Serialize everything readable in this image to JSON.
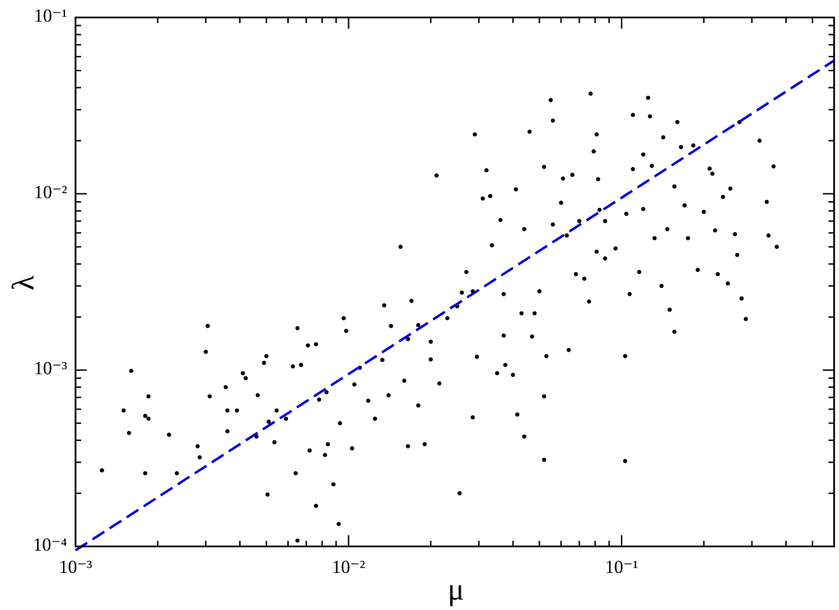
{
  "chart_data": {
    "type": "scatter",
    "x_label": "μ",
    "y_label": "λ",
    "xscale": "log",
    "yscale": "log",
    "xlim": [
      0.001,
      0.6
    ],
    "ylim": [
      0.0001,
      0.1
    ],
    "xticks": [
      {
        "value": 0.001,
        "label": "10⁻³"
      },
      {
        "value": 0.01,
        "label": "10⁻²"
      },
      {
        "value": 0.1,
        "label": "10⁻¹"
      }
    ],
    "yticks": [
      {
        "value": 0.0001,
        "label": "10⁻⁴"
      },
      {
        "value": 0.001,
        "label": "10⁻³"
      },
      {
        "value": 0.01,
        "label": "10⁻²"
      },
      {
        "value": 0.1,
        "label": "10⁻¹"
      }
    ],
    "xminorticks": [
      0.002,
      0.003,
      0.004,
      0.005,
      0.006,
      0.007,
      0.008,
      0.009,
      0.02,
      0.03,
      0.04,
      0.05,
      0.06,
      0.07,
      0.08,
      0.09,
      0.2,
      0.3,
      0.4,
      0.5
    ],
    "yminorticks": [
      0.0002,
      0.0003,
      0.0004,
      0.0005,
      0.0006,
      0.0007,
      0.0008,
      0.0009,
      0.002,
      0.003,
      0.004,
      0.005,
      0.006,
      0.007,
      0.008,
      0.009,
      0.02,
      0.03,
      0.04,
      0.05,
      0.06,
      0.07,
      0.08,
      0.09
    ],
    "series": [
      {
        "color": "#000000",
        "marker": "dot",
        "x": [
          0.00125,
          0.0015,
          0.0016,
          0.00157,
          0.0018,
          0.00185,
          0.00185,
          0.0018,
          0.0022,
          0.00235,
          0.0028,
          0.00285,
          0.003,
          0.00305,
          0.0031,
          0.00355,
          0.0036,
          0.0036,
          0.0039,
          0.0041,
          0.0042,
          0.0046,
          0.00465,
          0.0049,
          0.005,
          0.00505,
          0.0051,
          0.00545,
          0.00535,
          0.0059,
          0.00625,
          0.0065,
          0.0064,
          0.0065,
          0.0067,
          0.0071,
          0.0072,
          0.0076,
          0.0076,
          0.0078,
          0.0083,
          0.0084,
          0.0082,
          0.0088,
          0.0093,
          0.0092,
          0.0096,
          0.0098,
          0.0103,
          0.0105,
          0.011,
          0.0118,
          0.0125,
          0.0133,
          0.0135,
          0.014,
          0.0143,
          0.0155,
          0.016,
          0.0165,
          0.0165,
          0.017,
          0.018,
          0.018,
          0.019,
          0.02,
          0.02,
          0.021,
          0.0215,
          0.023,
          0.025,
          0.0255,
          0.026,
          0.027,
          0.0285,
          0.029,
          0.0295,
          0.0285,
          0.031,
          0.032,
          0.0335,
          0.033,
          0.035,
          0.037,
          0.036,
          0.037,
          0.0375,
          0.04,
          0.041,
          0.0415,
          0.043,
          0.044,
          0.044,
          0.046,
          0.047,
          0.048,
          0.05,
          0.052,
          0.052,
          0.052,
          0.053,
          0.055,
          0.056,
          0.056,
          0.06,
          0.061,
          0.063,
          0.064,
          0.066,
          0.068,
          0.07,
          0.073,
          0.076,
          0.077,
          0.079,
          0.081,
          0.082,
          0.083,
          0.081,
          0.087,
          0.087,
          0.095,
          0.103,
          0.103,
          0.104,
          0.107,
          0.11,
          0.11,
          0.116,
          0.12,
          0.12,
          0.125,
          0.127,
          0.129,
          0.132,
          0.14,
          0.142,
          0.147,
          0.15,
          0.156,
          0.156,
          0.16,
          0.165,
          0.17,
          0.175,
          0.183,
          0.19,
          0.2,
          0.21,
          0.215,
          0.22,
          0.225,
          0.235,
          0.245,
          0.25,
          0.26,
          0.265,
          0.27,
          0.275,
          0.285,
          0.32,
          0.34,
          0.345,
          0.36,
          0.37
        ],
        "values": [
          0.00027,
          0.00059,
          0.00099,
          0.00044,
          0.00055,
          0.00071,
          0.00053,
          0.00026,
          0.00043,
          0.00026,
          0.00037,
          0.00032,
          0.00127,
          0.00178,
          0.00071,
          0.0008,
          0.00059,
          0.00045,
          0.00059,
          0.00096,
          0.0009,
          0.00042,
          0.00072,
          0.0011,
          0.0012,
          0.000197,
          0.00051,
          0.00059,
          0.00039,
          0.00053,
          0.00105,
          0.00173,
          0.00026,
          0.000108,
          0.00107,
          0.00138,
          0.00035,
          0.0014,
          0.00017,
          0.00068,
          0.00075,
          0.00038,
          0.00033,
          0.000225,
          0.0005,
          0.000134,
          0.00197,
          0.00167,
          0.00036,
          0.00083,
          0.00103,
          0.00067,
          0.00053,
          0.00114,
          0.00233,
          0.00072,
          0.00178,
          0.005,
          0.00087,
          0.00037,
          0.0015,
          0.00247,
          0.0018,
          0.00063,
          0.00038,
          0.00145,
          0.00115,
          0.0127,
          0.00084,
          0.00197,
          0.0023,
          0.0002,
          0.00275,
          0.0036,
          0.0028,
          0.0217,
          0.00119,
          0.00054,
          0.0094,
          0.0136,
          0.0051,
          0.0097,
          0.00096,
          0.0027,
          0.0071,
          0.00157,
          0.00107,
          0.00094,
          0.0106,
          0.00056,
          0.0021,
          0.0063,
          0.00042,
          0.0225,
          0.00155,
          0.0021,
          0.0028,
          0.0142,
          0.00071,
          0.00031,
          0.0012,
          0.034,
          0.026,
          0.0067,
          0.0089,
          0.0122,
          0.0058,
          0.0013,
          0.0128,
          0.0035,
          0.007,
          0.0033,
          0.00245,
          0.037,
          0.0174,
          0.0217,
          0.0121,
          0.0081,
          0.0047,
          0.007,
          0.0043,
          0.0049,
          0.0012,
          0.000305,
          0.0077,
          0.0027,
          0.028,
          0.0138,
          0.0036,
          0.0167,
          0.0082,
          0.035,
          0.0275,
          0.0144,
          0.0056,
          0.003,
          0.0209,
          0.0063,
          0.0022,
          0.011,
          0.00165,
          0.0255,
          0.0184,
          0.0086,
          0.0056,
          0.0188,
          0.0037,
          0.0079,
          0.0139,
          0.013,
          0.0062,
          0.0035,
          0.0096,
          0.0031,
          0.0107,
          0.0059,
          0.0045,
          0.0255,
          0.00255,
          0.00195,
          0.02,
          0.009,
          0.0058,
          0.0143,
          0.005
        ]
      },
      {
        "color": "#0000dd",
        "line": "dashed",
        "x": [
          0.001,
          0.6
        ],
        "values": [
          9.5e-05,
          0.057
        ]
      }
    ]
  }
}
